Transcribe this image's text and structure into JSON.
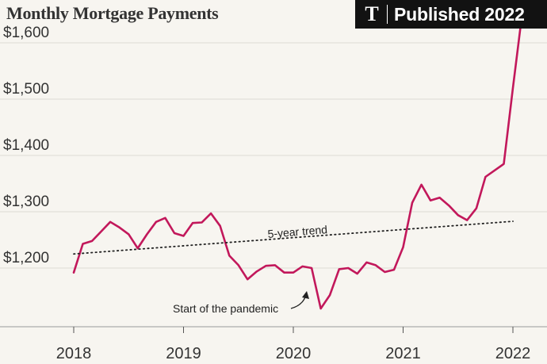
{
  "title": "Monthly Mortgage Payments",
  "badge": {
    "logo": "T",
    "text": "Published 2022"
  },
  "chart_data": {
    "type": "line",
    "title": "Monthly Mortgage Payments",
    "y_tick_labels": [
      "$1,200",
      "$1,300",
      "$1,400",
      "$1,500",
      "$1,600"
    ],
    "y_ticks": [
      1200,
      1300,
      1400,
      1500,
      1600
    ],
    "x_tick_labels": [
      "2018",
      "2019",
      "2020",
      "2021",
      "2022"
    ],
    "x_ticks": [
      2018,
      2019,
      2020,
      2021,
      2022
    ],
    "ylim": [
      1110,
      1660
    ],
    "xlim": [
      2017.9,
      2022.2
    ],
    "grid": "horizontal",
    "series": [
      {
        "color": "#c2185b",
        "x": [
          2018.0,
          2018.083,
          2018.167,
          2018.25,
          2018.333,
          2018.417,
          2018.5,
          2018.583,
          2018.667,
          2018.75,
          2018.833,
          2018.917,
          2019.0,
          2019.083,
          2019.167,
          2019.25,
          2019.333,
          2019.417,
          2019.5,
          2019.583,
          2019.667,
          2019.75,
          2019.833,
          2019.917,
          2020.0,
          2020.083,
          2020.167,
          2020.25,
          2020.333,
          2020.417,
          2020.5,
          2020.583,
          2020.667,
          2020.75,
          2020.833,
          2020.917,
          2021.0,
          2021.083,
          2021.167,
          2021.25,
          2021.333,
          2021.417,
          2021.5,
          2021.583,
          2021.667,
          2021.75,
          2021.917,
          2022.0,
          2022.083
        ],
        "y": [
          1192,
          1243,
          1248,
          1265,
          1282,
          1272,
          1260,
          1235,
          1260,
          1282,
          1289,
          1262,
          1257,
          1280,
          1281,
          1297,
          1275,
          1222,
          1205,
          1180,
          1194,
          1204,
          1205,
          1192,
          1192,
          1203,
          1200,
          1128,
          1152,
          1198,
          1200,
          1190,
          1210,
          1205,
          1193,
          1197,
          1237,
          1316,
          1348,
          1320,
          1325,
          1311,
          1294,
          1285,
          1306,
          1362,
          1385,
          1520,
          1650
        ]
      },
      {
        "name": "5-year trend",
        "style": "dotted",
        "color": "#222222",
        "x": [
          2018.0,
          2022.0
        ],
        "y": [
          1225,
          1283
        ]
      }
    ],
    "annotations": [
      {
        "text": "5-year trend",
        "x": 2019.75,
        "y": 1262
      },
      {
        "text": "Start of the pandemic",
        "x": 2019.2,
        "y": 1140,
        "arrow_to": {
          "x": 2020.17,
          "y": 1155
        }
      }
    ]
  }
}
